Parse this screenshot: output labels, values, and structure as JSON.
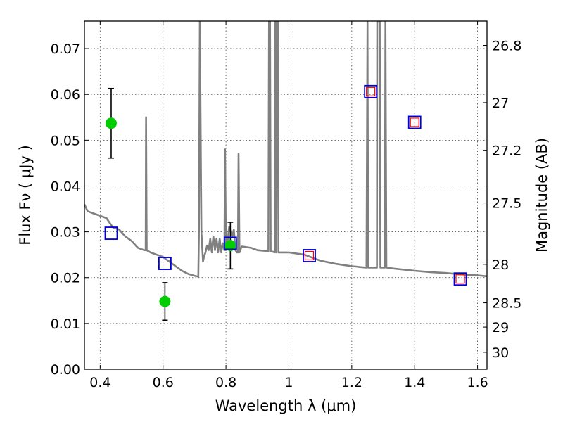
{
  "chart_data": {
    "type": "scatter",
    "xlabel": "Wavelength  λ (μm)",
    "ylabel": "Flux  Fν  ( μJy )",
    "y2label": "Magnitude (AB)",
    "xlim": [
      0.35,
      1.63
    ],
    "ylim": [
      0.0,
      0.076
    ],
    "grid": true,
    "x_ticks": [
      0.4,
      0.6,
      0.8,
      1.0,
      1.2,
      1.4,
      1.6
    ],
    "x_tick_labels": [
      "0.4",
      "0.6",
      "0.8",
      "1",
      "1.2",
      "1.4",
      "1.6"
    ],
    "y_ticks": [
      0.0,
      0.01,
      0.02,
      0.03,
      0.04,
      0.05,
      0.06,
      0.07
    ],
    "y_tick_labels": [
      "0.00",
      "0.01",
      "0.02",
      "0.03",
      "0.04",
      "0.05",
      "0.06",
      "0.07"
    ],
    "mag_ticks": [
      {
        "label": "26.8",
        "flux": 0.0707
      },
      {
        "label": "27",
        "flux": 0.0582
      },
      {
        "label": "27.2",
        "flux": 0.0478
      },
      {
        "label": "27.5",
        "flux": 0.0363
      },
      {
        "label": "28",
        "flux": 0.0229
      },
      {
        "label": "28.5",
        "flux": 0.0145
      },
      {
        "label": "29",
        "flux": 0.0092
      },
      {
        "label": "30",
        "flux": 0.0037
      }
    ],
    "colors": {
      "model": "#808080",
      "observed": "#00cc00",
      "model_phot_outer": "#0000dd",
      "model_phot_inner": "#ff0000",
      "errorbar": "#000000"
    },
    "series": [
      {
        "kind": "model-spectrum",
        "points": [
          [
            0.35,
            0.036
          ],
          [
            0.36,
            0.0345
          ],
          [
            0.38,
            0.034
          ],
          [
            0.4,
            0.0335
          ],
          [
            0.42,
            0.033
          ],
          [
            0.44,
            0.031
          ],
          [
            0.46,
            0.0305
          ],
          [
            0.48,
            0.029
          ],
          [
            0.5,
            0.028
          ],
          [
            0.52,
            0.0265
          ],
          [
            0.54,
            0.026
          ],
          [
            0.545,
            0.026
          ],
          [
            0.546,
            0.055
          ],
          [
            0.548,
            0.026
          ],
          [
            0.56,
            0.0255
          ],
          [
            0.58,
            0.025
          ],
          [
            0.6,
            0.0245
          ],
          [
            0.62,
            0.0235
          ],
          [
            0.64,
            0.0225
          ],
          [
            0.66,
            0.0215
          ],
          [
            0.68,
            0.0208
          ],
          [
            0.7,
            0.0204
          ],
          [
            0.712,
            0.0202
          ],
          [
            0.714,
            0.03
          ],
          [
            0.717,
            0.076
          ],
          [
            0.722,
            0.03
          ],
          [
            0.727,
            0.0235
          ],
          [
            0.73,
            0.0245
          ],
          [
            0.735,
            0.0255
          ],
          [
            0.74,
            0.027
          ],
          [
            0.745,
            0.026
          ],
          [
            0.75,
            0.0285
          ],
          [
            0.755,
            0.0255
          ],
          [
            0.76,
            0.029
          ],
          [
            0.765,
            0.026
          ],
          [
            0.77,
            0.0285
          ],
          [
            0.775,
            0.0255
          ],
          [
            0.78,
            0.0285
          ],
          [
            0.785,
            0.0255
          ],
          [
            0.79,
            0.0275
          ],
          [
            0.795,
            0.026
          ],
          [
            0.797,
            0.048
          ],
          [
            0.8,
            0.026
          ],
          [
            0.803,
            0.0265
          ],
          [
            0.81,
            0.031
          ],
          [
            0.815,
            0.03
          ],
          [
            0.82,
            0.029
          ],
          [
            0.825,
            0.0305
          ],
          [
            0.83,
            0.026
          ],
          [
            0.835,
            0.0255
          ],
          [
            0.838,
            0.0255
          ],
          [
            0.84,
            0.047
          ],
          [
            0.843,
            0.0255
          ],
          [
            0.85,
            0.0268
          ],
          [
            0.88,
            0.0265
          ],
          [
            0.9,
            0.026
          ],
          [
            0.93,
            0.0258
          ],
          [
            0.935,
            0.0258
          ],
          [
            0.937,
            0.076
          ],
          [
            0.94,
            0.076
          ],
          [
            0.942,
            0.0258
          ],
          [
            0.955,
            0.0255
          ],
          [
            0.957,
            0.076
          ],
          [
            0.96,
            0.0255
          ],
          [
            0.962,
            0.076
          ],
          [
            0.965,
            0.076
          ],
          [
            0.967,
            0.0255
          ],
          [
            0.97,
            0.0255
          ],
          [
            1.0,
            0.0255
          ],
          [
            1.05,
            0.025
          ],
          [
            1.1,
            0.0237
          ],
          [
            1.15,
            0.023
          ],
          [
            1.2,
            0.0225
          ],
          [
            1.245,
            0.0222
          ],
          [
            1.247,
            0.0222
          ],
          [
            1.25,
            0.076
          ],
          [
            1.252,
            0.0222
          ],
          [
            1.27,
            0.0222
          ],
          [
            1.28,
            0.0222
          ],
          [
            1.281,
            0.076
          ],
          [
            1.289,
            0.076
          ],
          [
            1.291,
            0.0222
          ],
          [
            1.3,
            0.0222
          ],
          [
            1.305,
            0.0222
          ],
          [
            1.307,
            0.076
          ],
          [
            1.31,
            0.0222
          ],
          [
            1.33,
            0.022
          ],
          [
            1.4,
            0.0215
          ],
          [
            1.45,
            0.0212
          ],
          [
            1.5,
            0.021
          ],
          [
            1.55,
            0.0207
          ],
          [
            1.6,
            0.0205
          ],
          [
            1.63,
            0.0203
          ]
        ]
      },
      {
        "kind": "observed-photometry",
        "points": [
          {
            "x": 0.435,
            "y": 0.0537,
            "err": 0.0076
          },
          {
            "x": 0.606,
            "y": 0.0148,
            "err": 0.0041
          },
          {
            "x": 0.814,
            "y": 0.027,
            "err": 0.0051
          }
        ]
      },
      {
        "kind": "model-photometry-outer",
        "points": [
          [
            0.435,
            0.0297
          ],
          [
            0.606,
            0.0231
          ],
          [
            0.814,
            0.0275
          ],
          [
            1.065,
            0.0248
          ],
          [
            1.26,
            0.0606
          ],
          [
            1.4,
            0.0539
          ],
          [
            1.545,
            0.0197
          ]
        ]
      },
      {
        "kind": "model-photometry-inner",
        "points": [
          [
            1.065,
            0.0248
          ],
          [
            1.26,
            0.0606
          ],
          [
            1.4,
            0.0539
          ],
          [
            1.545,
            0.0197
          ]
        ]
      }
    ]
  }
}
